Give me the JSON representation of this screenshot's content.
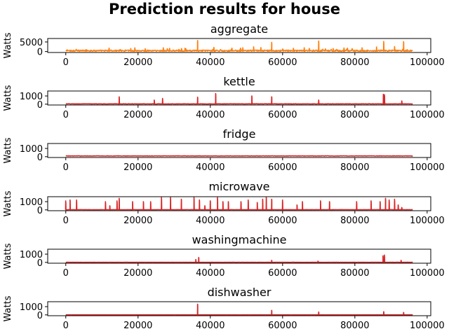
{
  "chart_data": {
    "type": "line",
    "title": "Prediction results for house",
    "x_ticks": [
      0,
      20000,
      40000,
      60000,
      80000,
      100000
    ],
    "xlim": [
      -5000,
      101000
    ],
    "panels": [
      {
        "title": "aggregate",
        "ylabel": "Watts",
        "y_ticks": [
          0,
          5000
        ],
        "ylim": [
          -500,
          6800
        ],
        "color": "#ff7f0e",
        "baseline": 300,
        "noise": 700,
        "n_spikes": 60,
        "spikes": [
          [
            36500,
            5800
          ],
          [
            57000,
            4800
          ],
          [
            70000,
            5500
          ],
          [
            88000,
            5300
          ],
          [
            93500,
            5200
          ],
          [
            12000,
            1800
          ],
          [
            18000,
            1600
          ],
          [
            22000,
            1500
          ],
          [
            27000,
            2000
          ],
          [
            33000,
            1700
          ],
          [
            41000,
            2200
          ],
          [
            46000,
            1800
          ],
          [
            49000,
            2000
          ],
          [
            52000,
            2500
          ],
          [
            54000,
            2100
          ],
          [
            63000,
            1700
          ],
          [
            66000,
            2000
          ],
          [
            74000,
            1600
          ],
          [
            77000,
            1900
          ],
          [
            82000,
            2000
          ],
          [
            86000,
            2400
          ],
          [
            91000,
            2600
          ]
        ]
      },
      {
        "title": "kettle",
        "ylabel": "Watts",
        "y_ticks": [
          0,
          1000
        ],
        "ylim": [
          -100,
          1600
        ],
        "color": "#d62728",
        "baseline": 30,
        "noise": 40,
        "n_spikes": 0,
        "spikes": [
          [
            14800,
            900
          ],
          [
            24500,
            500
          ],
          [
            26800,
            700
          ],
          [
            36500,
            850
          ],
          [
            41500,
            1300
          ],
          [
            51500,
            1000
          ],
          [
            57000,
            900
          ],
          [
            70000,
            500
          ],
          [
            87900,
            1200
          ],
          [
            88200,
            1150
          ],
          [
            93000,
            400
          ]
        ]
      },
      {
        "title": "fridge",
        "ylabel": "Watts",
        "y_ticks": [
          0,
          1000
        ],
        "ylim": [
          -100,
          1600
        ],
        "color": "#d62728",
        "baseline": 80,
        "noise": 50,
        "n_spikes": 0,
        "spikes": []
      },
      {
        "title": "microwave",
        "ylabel": "Watts",
        "y_ticks": [
          0,
          1000
        ],
        "ylim": [
          -100,
          1600
        ],
        "color": "#d62728",
        "baseline": 20,
        "noise": 20,
        "n_spikes": 0,
        "spikes": [
          [
            0,
            1100
          ],
          [
            1200,
            1200
          ],
          [
            3000,
            1200
          ],
          [
            11000,
            1000
          ],
          [
            12200,
            500
          ],
          [
            14200,
            1100
          ],
          [
            14800,
            1400
          ],
          [
            18500,
            1000
          ],
          [
            21500,
            1000
          ],
          [
            23500,
            1000
          ],
          [
            26500,
            1500
          ],
          [
            29000,
            1500
          ],
          [
            32000,
            1300
          ],
          [
            35500,
            1500
          ],
          [
            37000,
            1200
          ],
          [
            38500,
            500
          ],
          [
            40000,
            1100
          ],
          [
            42000,
            1500
          ],
          [
            43500,
            1000
          ],
          [
            45000,
            1000
          ],
          [
            48500,
            1000
          ],
          [
            50500,
            1200
          ],
          [
            53000,
            900
          ],
          [
            54500,
            1300
          ],
          [
            55500,
            1500
          ],
          [
            57000,
            1300
          ],
          [
            60000,
            1200
          ],
          [
            64000,
            600
          ],
          [
            65500,
            1000
          ],
          [
            70500,
            1100
          ],
          [
            73000,
            1000
          ],
          [
            80500,
            1000
          ],
          [
            84500,
            1100
          ],
          [
            87000,
            1000
          ],
          [
            88500,
            1400
          ],
          [
            89500,
            1200
          ],
          [
            91000,
            1300
          ],
          [
            92000,
            600
          ],
          [
            93000,
            300
          ]
        ]
      },
      {
        "title": "washingmachine",
        "ylabel": "Watts",
        "y_ticks": [
          0,
          1000
        ],
        "ylim": [
          -100,
          1600
        ],
        "color": "#d62728",
        "baseline": 10,
        "noise": 15,
        "n_spikes": 0,
        "spikes": [
          [
            36000,
            350
          ],
          [
            36800,
            600
          ],
          [
            57000,
            250
          ],
          [
            69800,
            150
          ],
          [
            87800,
            800
          ],
          [
            88200,
            900
          ],
          [
            92800,
            250
          ]
        ]
      },
      {
        "title": "dishwasher",
        "ylabel": "Watts",
        "y_ticks": [
          0,
          1000
        ],
        "ylim": [
          -100,
          1600
        ],
        "color": "#d62728",
        "baseline": 10,
        "noise": 10,
        "n_spikes": 0,
        "spikes": [
          [
            36500,
            1300
          ],
          [
            57000,
            550
          ],
          [
            70000,
            350
          ],
          [
            88000,
            400
          ],
          [
            93500,
            300
          ]
        ]
      }
    ]
  }
}
